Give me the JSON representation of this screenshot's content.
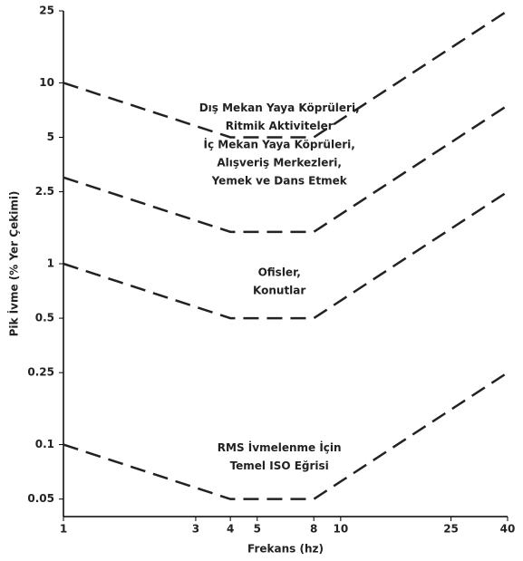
{
  "chart_data": {
    "type": "line",
    "xlabel": "Frekans (hz)",
    "ylabel": "Pik İvme (% Yer Çekimi)",
    "x": [
      1,
      4,
      8,
      40
    ],
    "xscale": "log",
    "yscale": "log",
    "xlim": [
      1,
      40
    ],
    "xticks": [
      1,
      3,
      4,
      5,
      8,
      10,
      25,
      40
    ],
    "ylim": [
      0.04,
      25
    ],
    "yticks": [
      0.05,
      0.1,
      0.25,
      0.5,
      1,
      2.5,
      5,
      10,
      25
    ],
    "series": [
      {
        "label": [
          "Dış Mekan Yaya Köprüleri,",
          "Ritmik Aktiviteler"
        ],
        "color": "#222222",
        "values": [
          10,
          5,
          5,
          25
        ]
      },
      {
        "label": [
          "İç Mekan Yaya Köprüleri,",
          "Alışveriş Merkezleri,",
          "Yemek ve Dans Etmek"
        ],
        "color": "#222222",
        "values": [
          3,
          1.5,
          1.5,
          7.5
        ]
      },
      {
        "label": [
          "Ofisler,",
          "Konutlar"
        ],
        "color": "#222222",
        "values": [
          1,
          0.5,
          0.5,
          2.5
        ]
      },
      {
        "label": [
          "RMS İvmelenme İçin",
          "Temel ISO Eğrisi"
        ],
        "color": "#222222",
        "values": [
          0.1,
          0.05,
          0.05,
          0.25
        ]
      }
    ]
  }
}
